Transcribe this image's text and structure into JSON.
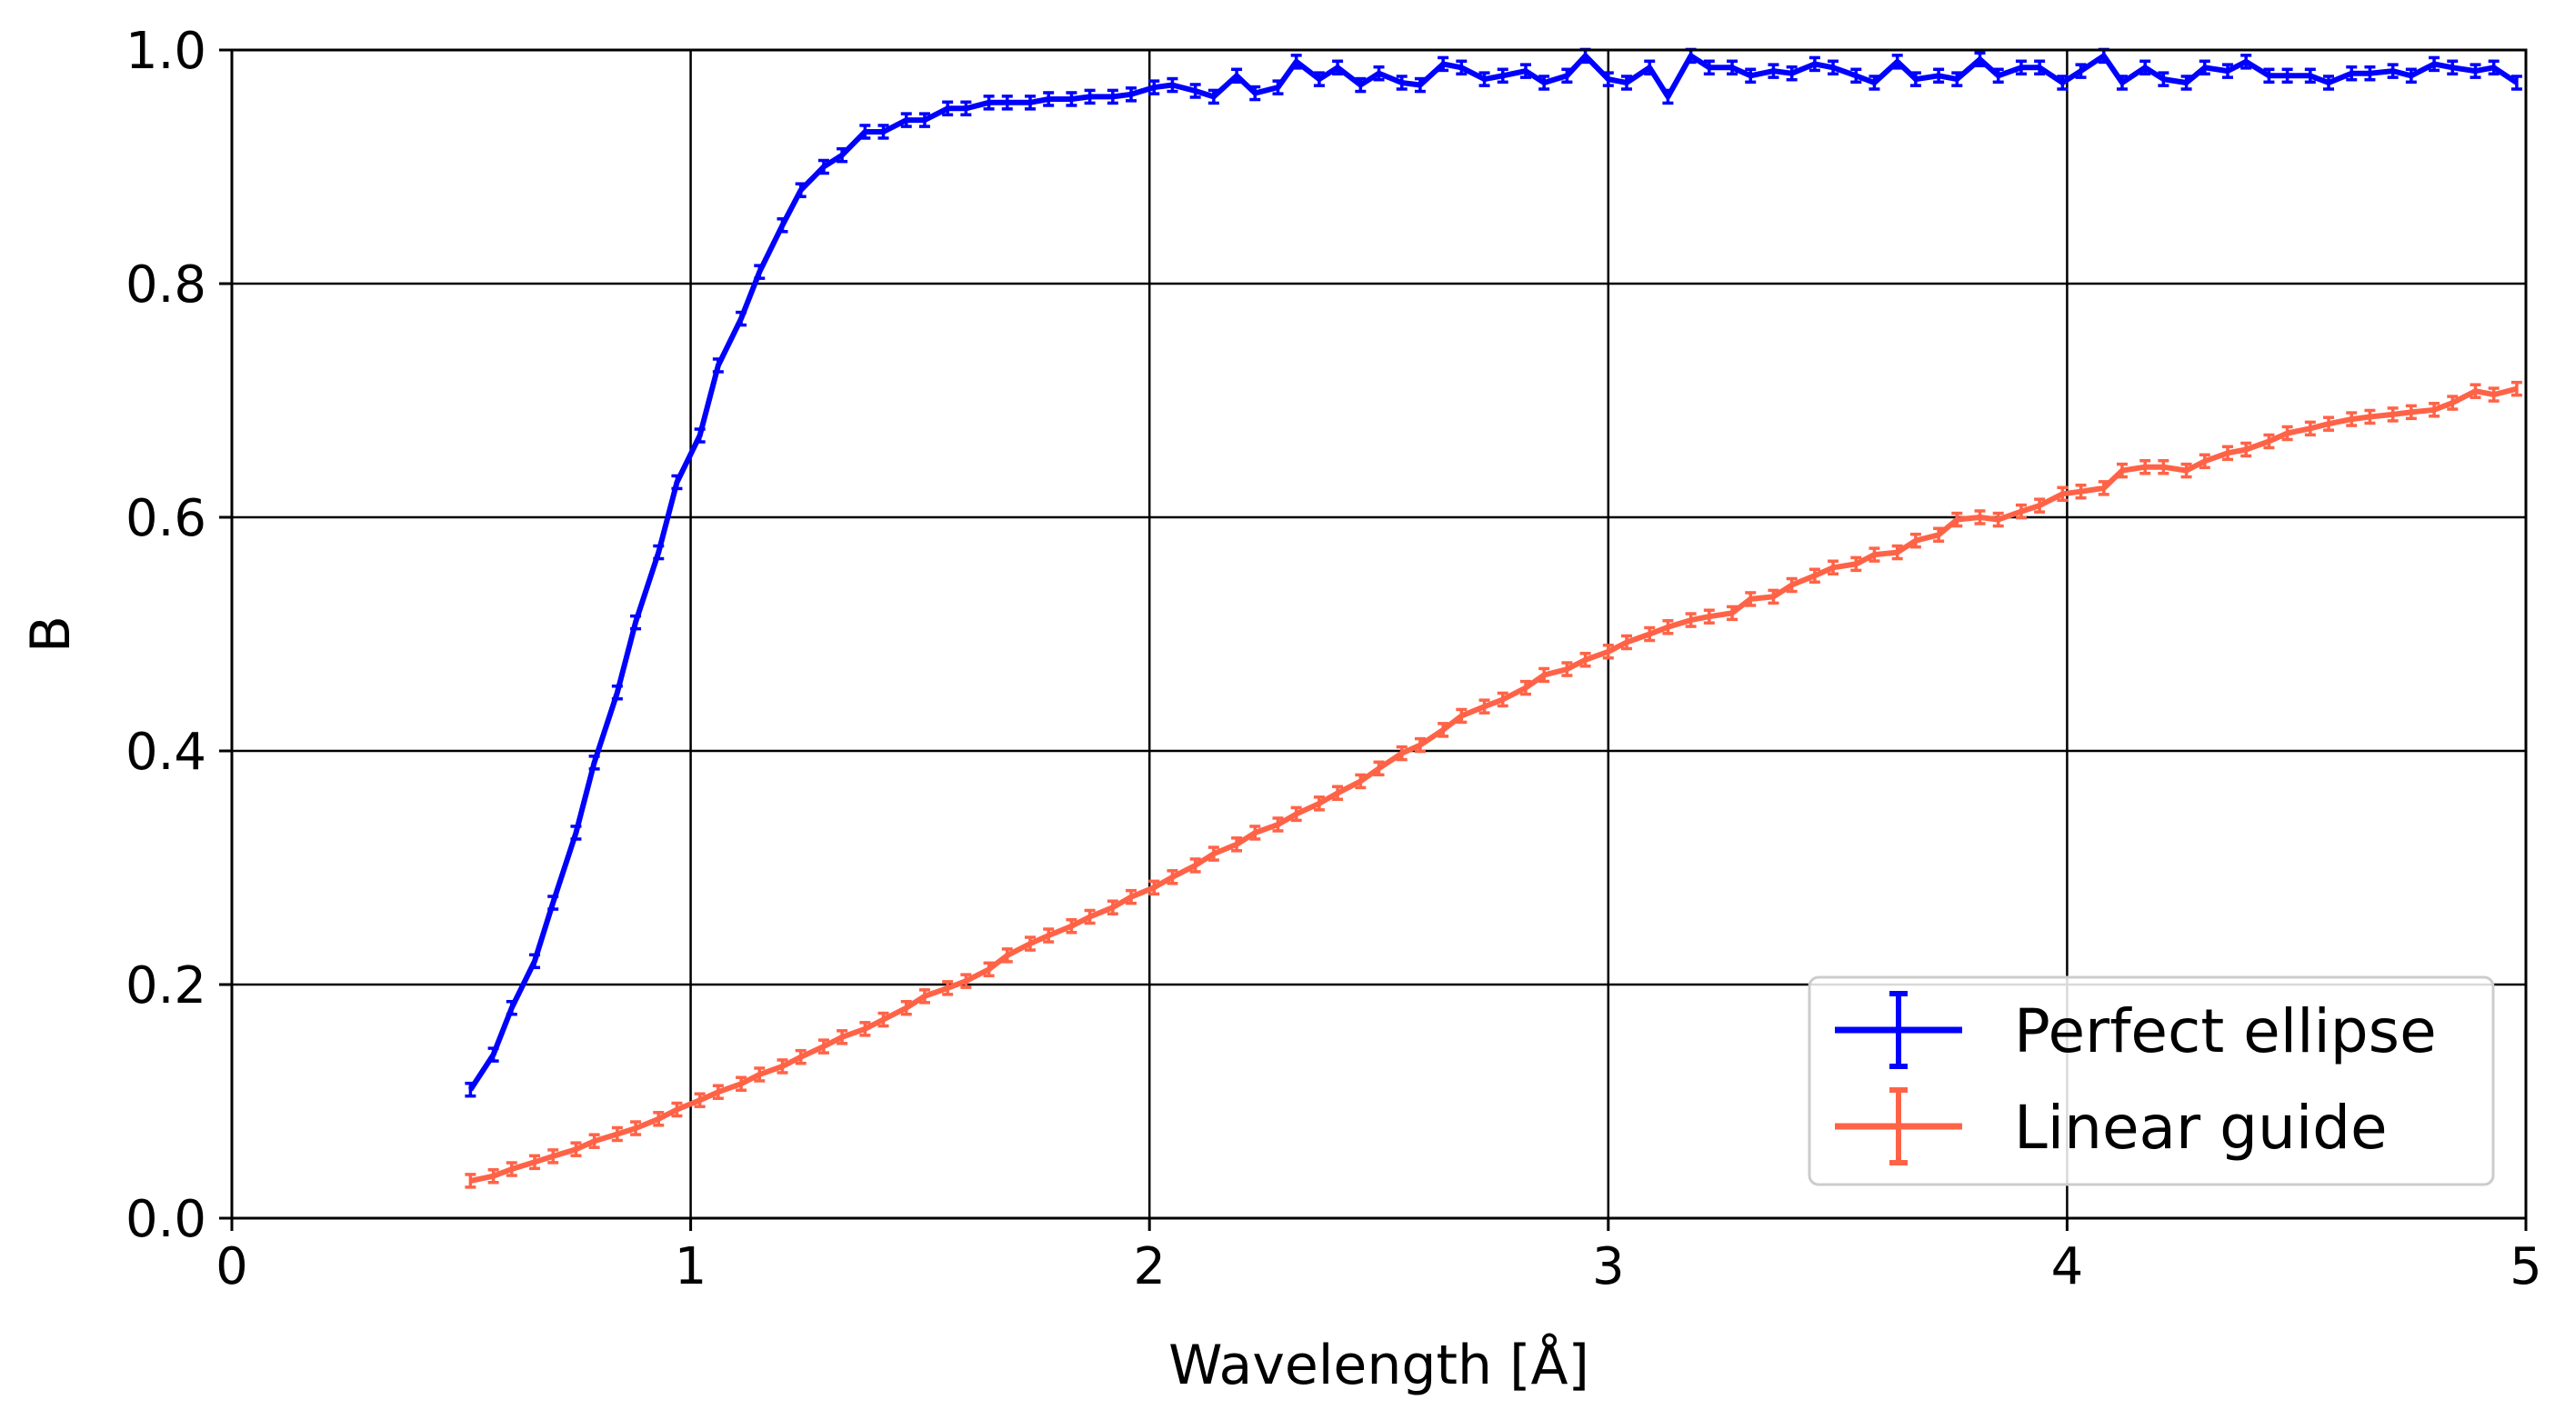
{
  "chart_data": {
    "type": "line",
    "xlabel": "Wavelength  [Å]",
    "ylabel": "B",
    "xlim": [
      0,
      5
    ],
    "ylim": [
      0,
      1.0
    ],
    "xticks": [
      0,
      1,
      2,
      3,
      4,
      5
    ],
    "xtick_labels": [
      "0",
      "1",
      "2",
      "3",
      "4",
      "5"
    ],
    "yticks": [
      0.0,
      0.2,
      0.4,
      0.6,
      0.8,
      1.0
    ],
    "ytick_labels": [
      "0.0",
      "0.2",
      "0.4",
      "0.6",
      "0.8",
      "1.0"
    ],
    "grid": true,
    "legend_position": "lower-right",
    "series": [
      {
        "name": "Perfect ellipse",
        "color": "#0000ff",
        "error_bars": true,
        "points": [
          [
            0.52,
            0.11
          ],
          [
            0.57,
            0.14
          ],
          [
            0.61,
            0.18
          ],
          [
            0.66,
            0.22
          ],
          [
            0.7,
            0.27
          ],
          [
            0.75,
            0.33
          ],
          [
            0.79,
            0.39
          ],
          [
            0.84,
            0.45
          ],
          [
            0.88,
            0.51
          ],
          [
            0.93,
            0.57
          ],
          [
            0.97,
            0.63
          ],
          [
            1.02,
            0.67
          ],
          [
            1.06,
            0.73
          ],
          [
            1.11,
            0.77
          ],
          [
            1.15,
            0.81
          ],
          [
            1.2,
            0.85
          ],
          [
            1.24,
            0.88
          ],
          [
            1.29,
            0.9
          ],
          [
            1.33,
            0.91
          ],
          [
            1.38,
            0.93
          ],
          [
            1.42,
            0.93
          ],
          [
            1.47,
            0.94
          ],
          [
            1.51,
            0.94
          ],
          [
            1.56,
            0.95
          ],
          [
            1.6,
            0.95
          ],
          [
            1.65,
            0.955
          ],
          [
            1.69,
            0.955
          ],
          [
            1.74,
            0.955
          ],
          [
            1.78,
            0.958
          ],
          [
            1.83,
            0.958
          ],
          [
            1.87,
            0.96
          ],
          [
            1.92,
            0.96
          ],
          [
            1.96,
            0.962
          ],
          [
            2.01,
            0.968
          ],
          [
            2.05,
            0.97
          ],
          [
            2.1,
            0.965
          ],
          [
            2.14,
            0.96
          ],
          [
            2.19,
            0.978
          ],
          [
            2.23,
            0.963
          ],
          [
            2.28,
            0.968
          ],
          [
            2.32,
            0.99
          ],
          [
            2.37,
            0.975
          ],
          [
            2.41,
            0.985
          ],
          [
            2.46,
            0.97
          ],
          [
            2.5,
            0.98
          ],
          [
            2.55,
            0.972
          ],
          [
            2.59,
            0.97
          ],
          [
            2.64,
            0.988
          ],
          [
            2.68,
            0.985
          ],
          [
            2.73,
            0.975
          ],
          [
            2.77,
            0.978
          ],
          [
            2.82,
            0.982
          ],
          [
            2.86,
            0.972
          ],
          [
            2.91,
            0.978
          ],
          [
            2.95,
            0.995
          ],
          [
            3.0,
            0.975
          ],
          [
            3.04,
            0.972
          ],
          [
            3.09,
            0.985
          ],
          [
            3.13,
            0.96
          ],
          [
            3.18,
            0.995
          ],
          [
            3.22,
            0.985
          ],
          [
            3.27,
            0.985
          ],
          [
            3.31,
            0.978
          ],
          [
            3.36,
            0.982
          ],
          [
            3.4,
            0.98
          ],
          [
            3.45,
            0.988
          ],
          [
            3.49,
            0.985
          ],
          [
            3.54,
            0.978
          ],
          [
            3.58,
            0.972
          ],
          [
            3.63,
            0.99
          ],
          [
            3.67,
            0.975
          ],
          [
            3.72,
            0.978
          ],
          [
            3.76,
            0.975
          ],
          [
            3.81,
            0.992
          ],
          [
            3.85,
            0.978
          ],
          [
            3.9,
            0.985
          ],
          [
            3.94,
            0.985
          ],
          [
            3.99,
            0.972
          ],
          [
            4.03,
            0.982
          ],
          [
            4.08,
            0.995
          ],
          [
            4.12,
            0.972
          ],
          [
            4.17,
            0.985
          ],
          [
            4.21,
            0.975
          ],
          [
            4.26,
            0.972
          ],
          [
            4.3,
            0.985
          ],
          [
            4.35,
            0.982
          ],
          [
            4.39,
            0.99
          ],
          [
            4.44,
            0.978
          ],
          [
            4.48,
            0.978
          ],
          [
            4.53,
            0.978
          ],
          [
            4.57,
            0.972
          ],
          [
            4.62,
            0.98
          ],
          [
            4.66,
            0.98
          ],
          [
            4.71,
            0.982
          ],
          [
            4.75,
            0.978
          ],
          [
            4.8,
            0.988
          ],
          [
            4.84,
            0.985
          ],
          [
            4.89,
            0.982
          ],
          [
            4.93,
            0.985
          ],
          [
            4.98,
            0.972
          ]
        ]
      },
      {
        "name": "Linear guide",
        "color": "#ff6347",
        "error_bars": true,
        "points": [
          [
            0.52,
            0.032
          ],
          [
            0.57,
            0.036
          ],
          [
            0.61,
            0.042
          ],
          [
            0.66,
            0.048
          ],
          [
            0.7,
            0.053
          ],
          [
            0.75,
            0.059
          ],
          [
            0.79,
            0.066
          ],
          [
            0.84,
            0.072
          ],
          [
            0.88,
            0.077
          ],
          [
            0.93,
            0.085
          ],
          [
            0.97,
            0.093
          ],
          [
            1.02,
            0.101
          ],
          [
            1.06,
            0.108
          ],
          [
            1.11,
            0.115
          ],
          [
            1.15,
            0.123
          ],
          [
            1.2,
            0.13
          ],
          [
            1.24,
            0.138
          ],
          [
            1.29,
            0.147
          ],
          [
            1.33,
            0.155
          ],
          [
            1.38,
            0.162
          ],
          [
            1.42,
            0.17
          ],
          [
            1.47,
            0.18
          ],
          [
            1.51,
            0.19
          ],
          [
            1.56,
            0.197
          ],
          [
            1.6,
            0.203
          ],
          [
            1.65,
            0.213
          ],
          [
            1.69,
            0.225
          ],
          [
            1.74,
            0.235
          ],
          [
            1.78,
            0.242
          ],
          [
            1.83,
            0.25
          ],
          [
            1.87,
            0.258
          ],
          [
            1.92,
            0.266
          ],
          [
            1.96,
            0.275
          ],
          [
            2.01,
            0.283
          ],
          [
            2.05,
            0.292
          ],
          [
            2.1,
            0.302
          ],
          [
            2.14,
            0.312
          ],
          [
            2.19,
            0.32
          ],
          [
            2.23,
            0.33
          ],
          [
            2.28,
            0.337
          ],
          [
            2.32,
            0.346
          ],
          [
            2.37,
            0.355
          ],
          [
            2.41,
            0.364
          ],
          [
            2.46,
            0.374
          ],
          [
            2.5,
            0.385
          ],
          [
            2.55,
            0.398
          ],
          [
            2.59,
            0.405
          ],
          [
            2.64,
            0.418
          ],
          [
            2.68,
            0.43
          ],
          [
            2.73,
            0.438
          ],
          [
            2.77,
            0.444
          ],
          [
            2.82,
            0.454
          ],
          [
            2.86,
            0.465
          ],
          [
            2.91,
            0.47
          ],
          [
            2.95,
            0.478
          ],
          [
            3.0,
            0.485
          ],
          [
            3.04,
            0.493
          ],
          [
            3.09,
            0.5
          ],
          [
            3.13,
            0.506
          ],
          [
            3.18,
            0.512
          ],
          [
            3.22,
            0.515
          ],
          [
            3.27,
            0.518
          ],
          [
            3.31,
            0.53
          ],
          [
            3.36,
            0.532
          ],
          [
            3.4,
            0.542
          ],
          [
            3.45,
            0.55
          ],
          [
            3.49,
            0.557
          ],
          [
            3.54,
            0.56
          ],
          [
            3.58,
            0.568
          ],
          [
            3.63,
            0.57
          ],
          [
            3.67,
            0.58
          ],
          [
            3.72,
            0.585
          ],
          [
            3.76,
            0.598
          ],
          [
            3.81,
            0.6
          ],
          [
            3.85,
            0.598
          ],
          [
            3.9,
            0.605
          ],
          [
            3.94,
            0.61
          ],
          [
            3.99,
            0.62
          ],
          [
            4.03,
            0.622
          ],
          [
            4.08,
            0.625
          ],
          [
            4.12,
            0.64
          ],
          [
            4.17,
            0.643
          ],
          [
            4.21,
            0.643
          ],
          [
            4.26,
            0.64
          ],
          [
            4.3,
            0.648
          ],
          [
            4.35,
            0.655
          ],
          [
            4.39,
            0.658
          ],
          [
            4.44,
            0.665
          ],
          [
            4.48,
            0.672
          ],
          [
            4.53,
            0.676
          ],
          [
            4.57,
            0.68
          ],
          [
            4.62,
            0.684
          ],
          [
            4.66,
            0.686
          ],
          [
            4.71,
            0.688
          ],
          [
            4.75,
            0.69
          ],
          [
            4.8,
            0.692
          ],
          [
            4.84,
            0.698
          ],
          [
            4.89,
            0.708
          ],
          [
            4.93,
            0.705
          ],
          [
            4.98,
            0.71
          ]
        ]
      }
    ]
  }
}
